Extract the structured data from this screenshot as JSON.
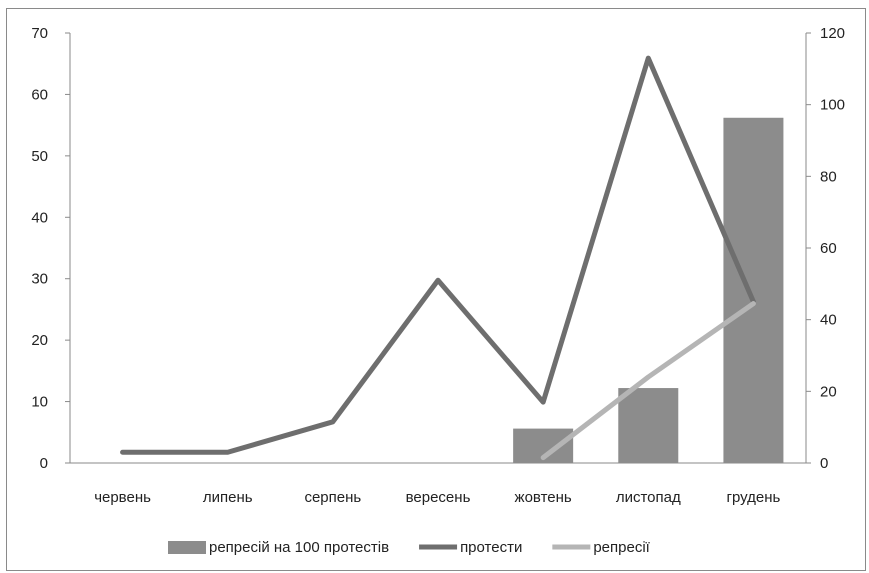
{
  "chart_data": {
    "type": "bar",
    "categories": [
      "червень",
      "липень",
      "серпень",
      "вересень",
      "жовтень",
      "листопад",
      "грудень"
    ],
    "series": [
      {
        "name": "репресій на 100 протестів",
        "kind": "bar",
        "axis": "left",
        "color": "#8c8c8c",
        "values": [
          0,
          0,
          0,
          0,
          5.6,
          12.2,
          56.2
        ]
      },
      {
        "name": "протести",
        "kind": "line",
        "axis": "right",
        "color": "#6e6e6e",
        "values": [
          3,
          3,
          11.5,
          51,
          17,
          113,
          45
        ]
      },
      {
        "name": "репресії",
        "kind": "line",
        "axis": "right",
        "color": "#b5b5b5",
        "values": [
          null,
          null,
          null,
          null,
          1.5,
          24,
          44.5
        ]
      }
    ],
    "y_left": {
      "ylim": [
        0,
        70
      ],
      "ticks": [
        "0",
        "10",
        "20",
        "30",
        "40",
        "50",
        "60",
        "70"
      ]
    },
    "y_right": {
      "ylim": [
        0,
        120
      ],
      "ticks": [
        "0",
        "20",
        "40",
        "60",
        "80",
        "100",
        "120"
      ]
    },
    "legend": {
      "position": "bottom"
    },
    "grid": false
  }
}
